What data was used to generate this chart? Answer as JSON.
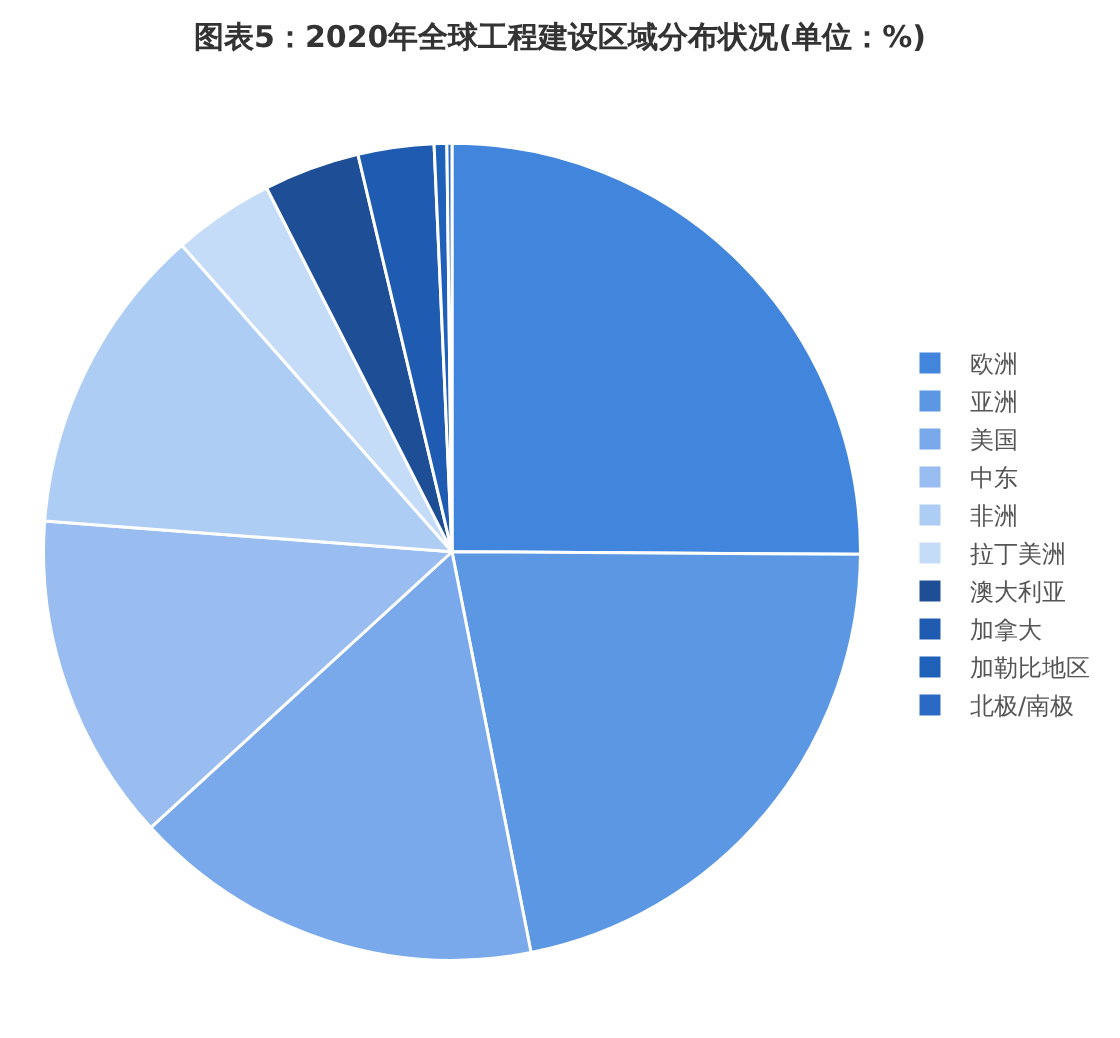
{
  "chart_data": {
    "type": "pie",
    "title": "图表5：2020年全球工程建设区域分布状况(单位：%)",
    "categories": [
      "欧洲",
      "亚洲",
      "美国",
      "中东",
      "非洲",
      "拉丁美洲",
      "澳大利亚",
      "加拿大",
      "加勒比地区",
      "北极/南极"
    ],
    "values": [
      25.1,
      21.8,
      16.3,
      13.0,
      12.3,
      4.0,
      3.8,
      3.0,
      0.5,
      0.2
    ],
    "colors": [
      "#4285dc",
      "#5b97e2",
      "#79a9ea",
      "#99bdf0",
      "#adcdf5",
      "#c5dcf8",
      "#1e4f96",
      "#1f5bb0",
      "#1f60b8",
      "#2a6ac4"
    ],
    "legend": "right"
  }
}
